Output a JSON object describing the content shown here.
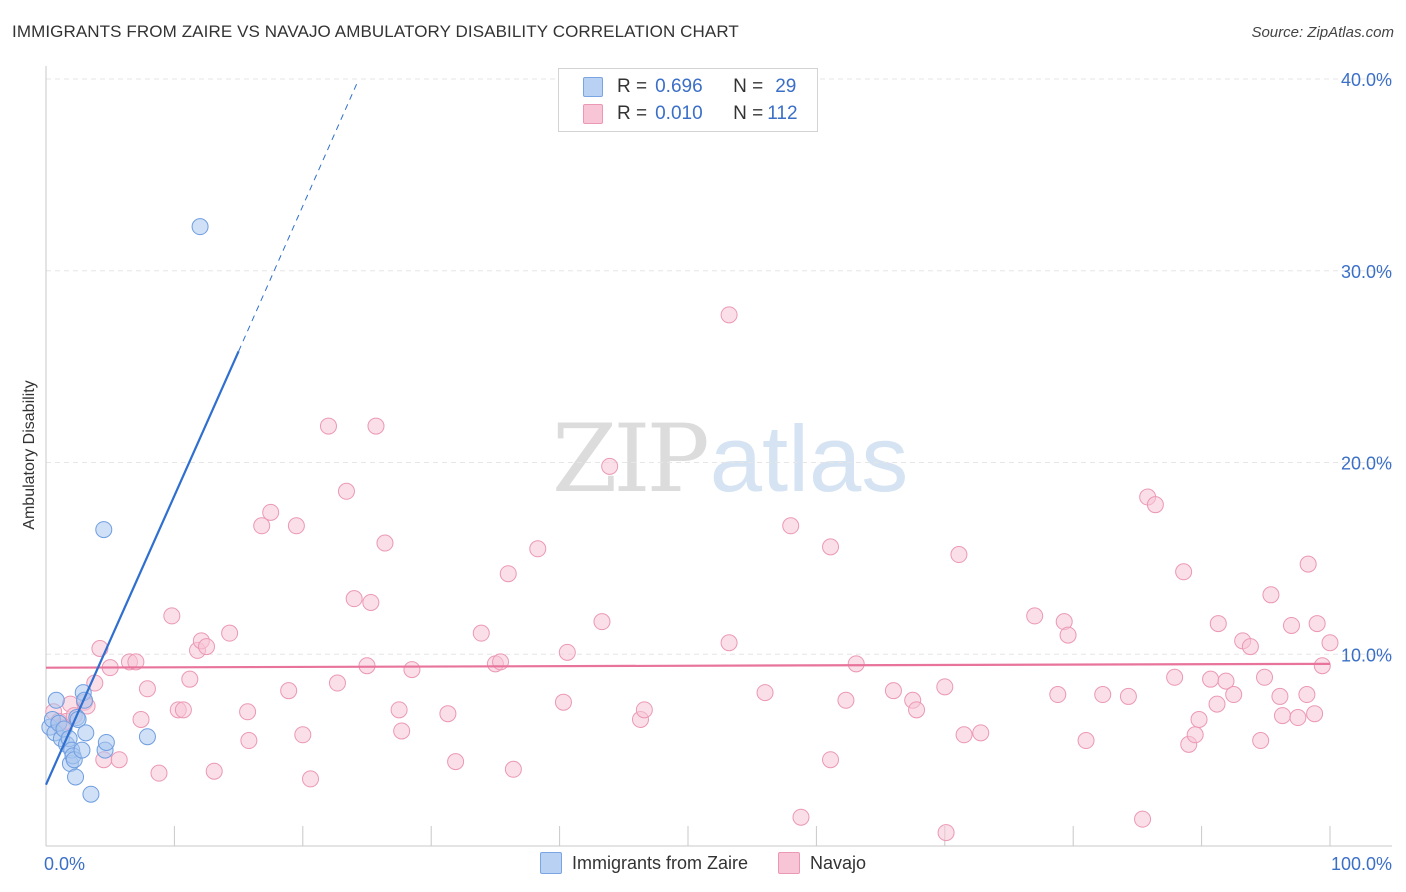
{
  "title": "IMMIGRANTS FROM ZAIRE VS NAVAJO AMBULATORY DISABILITY CORRELATION CHART",
  "source": "Source: ZipAtlas.com",
  "watermark": {
    "zip": "ZIP",
    "atlas": "atlas"
  },
  "legend": {
    "r_label": "R =",
    "n_label": "N =",
    "series": [
      {
        "r": "0.696",
        "n": "29",
        "color": "#b9d1f3",
        "stroke": "#7aa5e2"
      },
      {
        "r": "0.010",
        "n": "112",
        "color": "#f8c5d6",
        "stroke": "#eb98b4"
      }
    ]
  },
  "bottom_legend": [
    "Immigrants from Zaire",
    "Navajo"
  ],
  "chart_data": {
    "type": "scatter",
    "title": "IMMIGRANTS FROM ZAIRE VS NAVAJO AMBULATORY DISABILITY CORRELATION CHART",
    "xlabel": "",
    "ylabel": "Ambulatory Disability",
    "xlim": [
      0,
      100
    ],
    "ylim": [
      0,
      40
    ],
    "x_tick_labels": [
      "0.0%",
      "100.0%"
    ],
    "y_ticks": [
      10,
      20,
      30,
      40
    ],
    "y_tick_labels": [
      "10.0%",
      "20.0%",
      "30.0%",
      "40.0%"
    ],
    "grid": true,
    "legend_position": "top-center",
    "series": [
      {
        "name": "Immigrants from Zaire",
        "color": "#a9c7ef",
        "stroke": "#6f9ee0",
        "line_color": "#2f6fcf",
        "trend": {
          "x0": 0,
          "y0": 3.2,
          "x1": 15,
          "y1": 25.8,
          "dash_to_x": 24.3,
          "dash_to_y": 39.9
        },
        "points": [
          [
            0.3,
            6.2
          ],
          [
            0.5,
            6.6
          ],
          [
            0.7,
            5.9
          ],
          [
            0.8,
            7.6
          ],
          [
            1.0,
            6.4
          ],
          [
            1.2,
            5.6
          ],
          [
            1.4,
            6.1
          ],
          [
            1.6,
            5.3
          ],
          [
            1.8,
            5.6
          ],
          [
            1.9,
            4.3
          ],
          [
            2.0,
            5.0
          ],
          [
            2.1,
            4.7
          ],
          [
            2.2,
            4.5
          ],
          [
            2.3,
            3.6
          ],
          [
            2.4,
            6.7
          ],
          [
            2.5,
            6.6
          ],
          [
            2.8,
            5.0
          ],
          [
            2.9,
            8.0
          ],
          [
            3.0,
            7.6
          ],
          [
            3.1,
            5.9
          ],
          [
            3.5,
            2.7
          ],
          [
            4.5,
            16.5
          ],
          [
            4.6,
            5.0
          ],
          [
            4.7,
            5.4
          ],
          [
            7.9,
            5.7
          ],
          [
            12.0,
            32.3
          ]
        ]
      },
      {
        "name": "Navajo",
        "color": "#f8c5d6",
        "stroke": "#eb98b4",
        "line_color": "#e8739b",
        "trend": {
          "x0": 0,
          "y0": 9.3,
          "x1": 100,
          "y1": 9.5
        },
        "points": [
          [
            0.6,
            7.0
          ],
          [
            1.0,
            6.5
          ],
          [
            1.2,
            6.2
          ],
          [
            1.6,
            6.5
          ],
          [
            1.9,
            7.4
          ],
          [
            2.2,
            6.8
          ],
          [
            3.0,
            7.5
          ],
          [
            3.2,
            7.3
          ],
          [
            3.8,
            8.5
          ],
          [
            4.2,
            10.3
          ],
          [
            4.5,
            4.5
          ],
          [
            5.0,
            9.3
          ],
          [
            5.7,
            4.5
          ],
          [
            6.5,
            9.6
          ],
          [
            7.0,
            9.6
          ],
          [
            7.4,
            6.6
          ],
          [
            7.9,
            8.2
          ],
          [
            8.8,
            3.8
          ],
          [
            9.8,
            12.0
          ],
          [
            10.3,
            7.1
          ],
          [
            10.7,
            7.1
          ],
          [
            11.2,
            8.7
          ],
          [
            11.8,
            10.2
          ],
          [
            12.1,
            10.7
          ],
          [
            12.5,
            10.4
          ],
          [
            13.1,
            3.9
          ],
          [
            14.3,
            11.1
          ],
          [
            15.7,
            7.0
          ],
          [
            15.8,
            5.5
          ],
          [
            16.8,
            16.7
          ],
          [
            17.5,
            17.4
          ],
          [
            18.9,
            8.1
          ],
          [
            19.5,
            16.7
          ],
          [
            20.0,
            5.8
          ],
          [
            20.6,
            3.5
          ],
          [
            22.0,
            21.9
          ],
          [
            22.7,
            8.5
          ],
          [
            23.4,
            18.5
          ],
          [
            24.0,
            12.9
          ],
          [
            25.0,
            9.4
          ],
          [
            25.3,
            12.7
          ],
          [
            25.7,
            21.9
          ],
          [
            26.4,
            15.8
          ],
          [
            27.5,
            7.1
          ],
          [
            27.7,
            6.0
          ],
          [
            28.5,
            9.2
          ],
          [
            31.3,
            6.9
          ],
          [
            31.9,
            4.4
          ],
          [
            33.9,
            11.1
          ],
          [
            35.0,
            9.5
          ],
          [
            35.4,
            9.6
          ],
          [
            36.0,
            14.2
          ],
          [
            36.4,
            4.0
          ],
          [
            38.3,
            15.5
          ],
          [
            40.3,
            7.5
          ],
          [
            40.6,
            10.1
          ],
          [
            43.3,
            11.7
          ],
          [
            43.9,
            19.8
          ],
          [
            46.3,
            6.6
          ],
          [
            46.6,
            7.1
          ],
          [
            53.2,
            10.6
          ],
          [
            53.2,
            27.7
          ],
          [
            56.0,
            8.0
          ],
          [
            58.0,
            16.7
          ],
          [
            58.8,
            1.5
          ],
          [
            61.1,
            15.6
          ],
          [
            61.1,
            4.5
          ],
          [
            62.3,
            7.6
          ],
          [
            63.1,
            9.5
          ],
          [
            66.0,
            8.1
          ],
          [
            67.5,
            7.6
          ],
          [
            67.8,
            7.1
          ],
          [
            70.0,
            8.3
          ],
          [
            70.1,
            0.7
          ],
          [
            71.1,
            15.2
          ],
          [
            71.5,
            5.8
          ],
          [
            72.8,
            5.9
          ],
          [
            77.0,
            12.0
          ],
          [
            78.8,
            7.9
          ],
          [
            79.3,
            11.7
          ],
          [
            79.6,
            11.0
          ],
          [
            81.0,
            5.5
          ],
          [
            82.3,
            7.9
          ],
          [
            84.3,
            7.8
          ],
          [
            85.4,
            1.4
          ],
          [
            85.8,
            18.2
          ],
          [
            86.4,
            17.8
          ],
          [
            87.9,
            8.8
          ],
          [
            88.6,
            14.3
          ],
          [
            89.0,
            5.3
          ],
          [
            89.5,
            5.8
          ],
          [
            89.8,
            6.6
          ],
          [
            90.7,
            8.7
          ],
          [
            91.2,
            7.4
          ],
          [
            91.3,
            11.6
          ],
          [
            91.9,
            8.6
          ],
          [
            92.5,
            7.9
          ],
          [
            93.2,
            10.7
          ],
          [
            93.8,
            10.4
          ],
          [
            94.6,
            5.5
          ],
          [
            94.9,
            8.8
          ],
          [
            95.4,
            13.1
          ],
          [
            96.1,
            7.8
          ],
          [
            96.3,
            6.8
          ],
          [
            97.0,
            11.5
          ],
          [
            97.5,
            6.7
          ],
          [
            98.2,
            7.9
          ],
          [
            98.3,
            14.7
          ],
          [
            98.8,
            6.9
          ],
          [
            99.0,
            11.6
          ],
          [
            99.4,
            9.4
          ],
          [
            100.0,
            10.6
          ]
        ]
      }
    ]
  }
}
